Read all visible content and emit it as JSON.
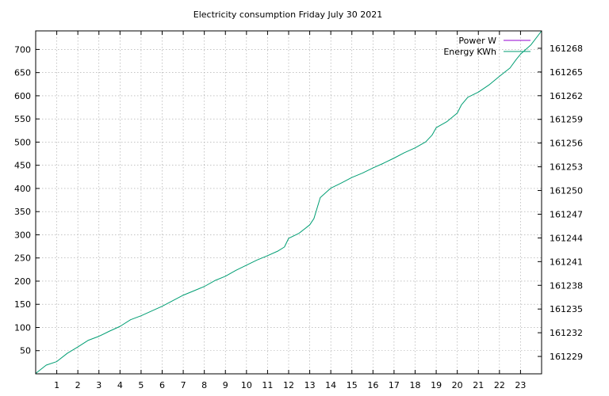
{
  "chart_data": {
    "type": "line",
    "title": "Electricity consumption Friday July 30 2021",
    "xlabel": "",
    "ylabel": "",
    "y2label": "",
    "grid": true,
    "legend_position": "top-right",
    "xlim": [
      0,
      24
    ],
    "ylim": [
      0,
      740
    ],
    "y2lim": [
      161226.8,
      161270.2
    ],
    "x_ticks": [
      1,
      2,
      3,
      4,
      5,
      6,
      7,
      8,
      9,
      10,
      11,
      12,
      13,
      14,
      15,
      16,
      17,
      18,
      19,
      20,
      21,
      22,
      23
    ],
    "y_ticks": [
      50,
      100,
      150,
      200,
      250,
      300,
      350,
      400,
      450,
      500,
      550,
      600,
      650,
      700
    ],
    "y2_ticks": [
      161229,
      161232,
      161235,
      161238,
      161241,
      161244,
      161247,
      161250,
      161253,
      161256,
      161259,
      161262,
      161265,
      161268
    ],
    "series": [
      {
        "name": "Power W",
        "color": "#9400d3",
        "axis": "y",
        "x": [],
        "y": []
      },
      {
        "name": "Energy KWh",
        "color": "#009e73",
        "axis": "y2",
        "x": [
          0,
          0.5,
          1,
          1.5,
          2,
          2.5,
          3,
          3.5,
          4,
          4.5,
          5,
          5.5,
          6,
          6.5,
          7,
          7.5,
          8,
          8.5,
          9,
          9.5,
          10,
          10.5,
          11,
          11.5,
          11.8,
          12,
          12.5,
          13,
          13.2,
          13.5,
          14,
          14.5,
          15,
          15.5,
          16,
          16.5,
          17,
          17.5,
          18,
          18.5,
          18.8,
          19,
          19.5,
          20,
          20.2,
          20.5,
          21,
          21.5,
          22,
          22.5,
          22.8,
          23,
          23.5,
          24
        ],
        "y": [
          161226.85,
          161227.9,
          161228.35,
          161229.4,
          161230.2,
          161231.05,
          161231.55,
          161232.2,
          161232.8,
          161233.65,
          161234.15,
          161234.75,
          161235.35,
          161236.05,
          161236.75,
          161237.3,
          161237.85,
          161238.6,
          161239.15,
          161239.9,
          161240.55,
          161241.2,
          161241.75,
          161242.35,
          161242.85,
          161243.95,
          161244.6,
          161245.65,
          161246.45,
          161249.1,
          161250.3,
          161250.95,
          161251.65,
          161252.2,
          161252.85,
          161253.45,
          161254.1,
          161254.8,
          161255.4,
          161256.15,
          161257.0,
          161257.95,
          161258.7,
          161259.8,
          161260.85,
          161261.8,
          161262.45,
          161263.35,
          161264.45,
          161265.5,
          161266.6,
          161267.25,
          161268.45,
          161270.2
        ]
      }
    ]
  }
}
